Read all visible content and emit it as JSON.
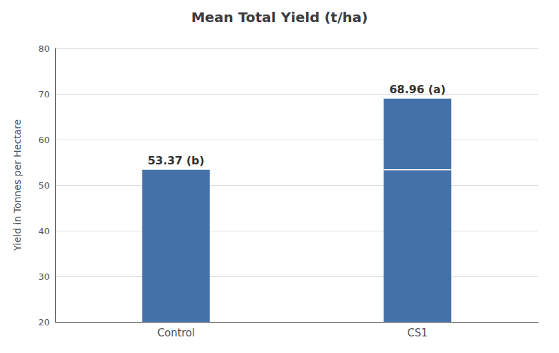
{
  "chart_data": {
    "type": "bar",
    "title": "Mean Total Yield (t/ha)",
    "ylabel": "Yield in Tonnes per Hectare",
    "categories": [
      "Control",
      "CS1"
    ],
    "values": [
      53.37,
      68.96
    ],
    "value_labels": [
      "53.37 (b)",
      "68.96 (a)"
    ],
    "data_labels": true,
    "color": "#4472a8",
    "divider": {
      "category": "CS1",
      "value": 53.37
    },
    "ylim": [
      20,
      80
    ],
    "yticks": [
      20,
      30,
      40,
      50,
      60,
      70,
      80
    ],
    "grid": true
  }
}
